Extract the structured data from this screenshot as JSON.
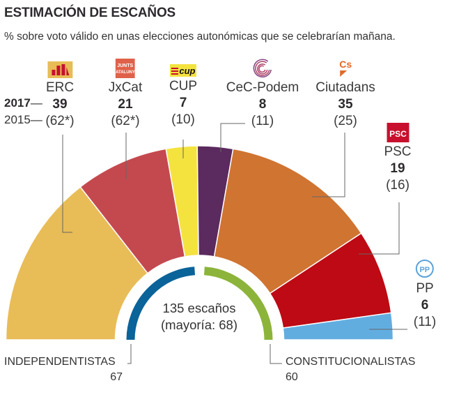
{
  "title": "ESTIMACIÓN DE ESCAÑOS",
  "subtitle": "% sobre voto válido en unas elecciones autonómicas que se celebrarían mañana.",
  "year_labels": {
    "current": "2017",
    "previous": "2015"
  },
  "center": {
    "line1": "135 escaños",
    "line2": "(mayoría: 68)"
  },
  "blocs": [
    {
      "name": "INDEPENDENTISTAS",
      "seats": "67",
      "color": "#0a6399"
    },
    {
      "name": "CONSTITUCIONALISTAS",
      "seats": "60",
      "color": "#8cb43a"
    }
  ],
  "chart_data": {
    "type": "pie",
    "subtype": "semicircle-parliament",
    "title": "ESTIMACIÓN DE ESCAÑOS",
    "total_seats": 135,
    "majority": 68,
    "parties": [
      {
        "name": "ERC",
        "seats": 39,
        "seats_2015": "(62*)",
        "color": "#e8bc57",
        "logo": "erc-logo"
      },
      {
        "name": "JxCat",
        "seats": 21,
        "seats_2015": "(62*)",
        "color": "#c4494f",
        "logo": "jxcat-logo"
      },
      {
        "name": "CUP",
        "seats": 7,
        "seats_2015": "(10)",
        "color": "#f4e23f",
        "logo": "cup-logo"
      },
      {
        "name": "CeC-Podem",
        "seats": 8,
        "seats_2015": "(11)",
        "color": "#5b2a5e",
        "logo": "cec-podem-logo"
      },
      {
        "name": "Ciutadans",
        "seats": 35,
        "seats_2015": "(25)",
        "color": "#d07431",
        "logo": "ciutadans-logo"
      },
      {
        "name": "PSC",
        "seats": 19,
        "seats_2015": "(16)",
        "color": "#bd0a14",
        "logo": "psc-logo"
      },
      {
        "name": "PP",
        "seats": 6,
        "seats_2015": "(11)",
        "color": "#62ade0",
        "logo": "pp-logo"
      }
    ]
  },
  "logos": {
    "psc_text": "PSC",
    "pp_text": "PP",
    "cup_text": "cup",
    "cs_text": "Cs",
    "jxcat_text": "JUNTS PER CATALUNYA"
  }
}
